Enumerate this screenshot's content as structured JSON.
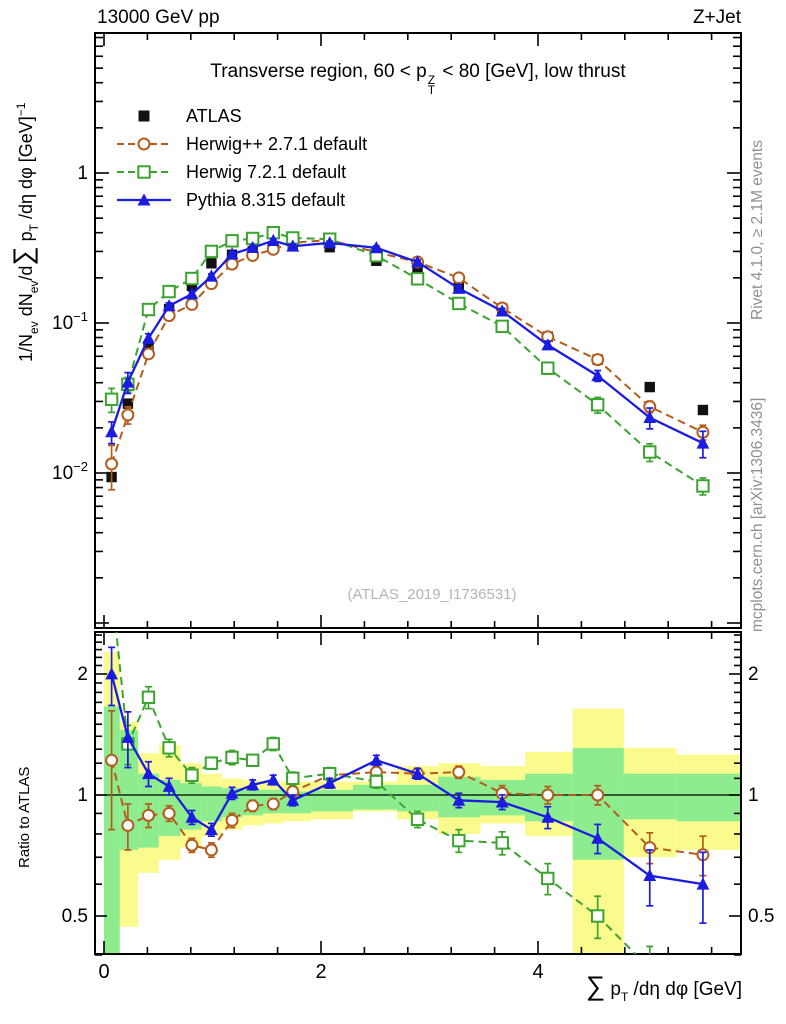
{
  "header": {
    "beam": "13000 GeV pp",
    "process": "Z+Jet"
  },
  "panel_title": {
    "prefix": "Transverse region, 60 < p",
    "sup": "Z",
    "sub": "T",
    "suffix": " < 80 [GeV], low thrust"
  },
  "watermark": "(ATLAS_2019_I1736531)",
  "side_notes": {
    "top": "Rivet 4.1.0, ≥ 2.1M events",
    "bottom": "mcplots.cern.ch [arXiv:1306.3436]"
  },
  "legend": [
    {
      "label": "ATLAS",
      "marker": "square",
      "color": "#111111",
      "line": "none"
    },
    {
      "label": "Herwig++ 2.7.1 default",
      "marker": "circle-open",
      "color": "#b45c1e",
      "line": "dashed"
    },
    {
      "label": "Herwig 7.2.1 default",
      "marker": "square-open",
      "color": "#3ba32f",
      "line": "dashed"
    },
    {
      "label": "Pythia 8.315 default",
      "marker": "triangle",
      "color": "#1c1ce0",
      "line": "solid"
    }
  ],
  "axes": {
    "x": {
      "ticks": [
        {
          "v": 0,
          "label": "0"
        },
        {
          "v": 2,
          "label": "2"
        },
        {
          "v": 4,
          "label": "4"
        }
      ],
      "minor_step": 0.4,
      "lim": [
        -0.085,
        5.87
      ],
      "label_parts": [
        {
          "t": "∑",
          "c": "big"
        },
        {
          "t": " p",
          "c": ""
        },
        {
          "t": "T",
          "c": "sub"
        },
        {
          "t": " /dη dφ [GeV]",
          "c": ""
        }
      ]
    },
    "main_y": {
      "scale": "log",
      "lim": [
        0.00092,
        8.6
      ],
      "ticks": [
        {
          "v": 1,
          "base": "1",
          "exp": ""
        },
        {
          "v": 0.1,
          "base": "10",
          "exp": "−1"
        },
        {
          "v": 0.01,
          "base": "10",
          "exp": "−2"
        }
      ],
      "label_parts": [
        {
          "t": "1/N",
          "c": ""
        },
        {
          "t": "ev",
          "c": "sub"
        },
        {
          "t": " dN",
          "c": ""
        },
        {
          "t": "ev",
          "c": "sub"
        },
        {
          "t": "/d",
          "c": ""
        },
        {
          "t": "∑",
          "c": "big"
        },
        {
          "t": " p",
          "c": ""
        },
        {
          "t": "T",
          "c": "sub"
        },
        {
          "t": " /dη dφ  [GeV]",
          "c": ""
        },
        {
          "t": "−1",
          "c": "sup"
        }
      ]
    },
    "ratio_y": {
      "scale": "log",
      "lim": [
        0.402,
        2.55
      ],
      "ticks": [
        {
          "v": 2,
          "label": "2"
        },
        {
          "v": 1,
          "label": "1"
        },
        {
          "v": 0.5,
          "label": "0.5"
        }
      ],
      "label": "Ratio to ATLAS"
    }
  },
  "chart_data": {
    "type": "line",
    "title": "Transverse region, 60 < p_T^Z < 80 [GeV], low thrust",
    "xlabel": "sum p_T /deta dphi [GeV]",
    "ylabel": "1/N_ev dN_ev/d sum p_T /deta dphi [GeV]^-1",
    "ratio_ylabel": "Ratio to ATLAS",
    "x": [
      0.07,
      0.22,
      0.41,
      0.6,
      0.81,
      0.99,
      1.18,
      1.37,
      1.56,
      1.74,
      2.08,
      2.51,
      2.89,
      3.27,
      3.67,
      4.09,
      4.55,
      5.03,
      5.52
    ],
    "bin_edges": [
      0,
      0.145,
      0.315,
      0.505,
      0.705,
      0.9,
      1.085,
      1.275,
      1.465,
      1.65,
      1.91,
      2.295,
      2.7,
      3.08,
      3.47,
      3.88,
      4.32,
      4.79,
      5.275,
      5.87
    ],
    "reference": {
      "name": "ATLAS",
      "color": "#111111",
      "marker": "square",
      "values": [
        0.0094,
        0.029,
        0.07,
        0.124,
        0.177,
        0.25,
        0.285,
        0.3,
        0.325,
        0.335,
        0.32,
        0.26,
        0.226,
        0.175,
        0.125,
        0.081,
        0.057,
        0.0374,
        0.0263
      ]
    },
    "series": [
      {
        "name": "Herwig++ 2.7.1 default",
        "color": "#b45c1e",
        "marker": "circle-open",
        "line": "dashed",
        "values": [
          0.0115,
          0.0244,
          0.0623,
          0.112,
          0.133,
          0.183,
          0.247,
          0.282,
          0.31,
          0.342,
          0.358,
          0.296,
          0.255,
          0.2,
          0.126,
          0.081,
          0.057,
          0.0277,
          0.0187
        ],
        "ratio": [
          1.22,
          0.84,
          0.89,
          0.9,
          0.75,
          0.73,
          0.865,
          0.94,
          0.95,
          1.02,
          1.12,
          1.14,
          1.13,
          1.14,
          1.01,
          1.0,
          1.0,
          0.74,
          0.71
        ],
        "ratio_err": [
          0.4,
          0.11,
          0.06,
          0.04,
          0.03,
          0.03,
          0.035,
          0.03,
          0.03,
          0.03,
          0.03,
          0.035,
          0.035,
          0.04,
          0.045,
          0.05,
          0.055,
          0.065,
          0.08
        ]
      },
      {
        "name": "Herwig 7.2.1 default",
        "color": "#3ba32f",
        "marker": "square-open",
        "line": "dashed",
        "values": [
          0.031,
          0.039,
          0.123,
          0.162,
          0.198,
          0.3,
          0.353,
          0.366,
          0.4,
          0.369,
          0.362,
          0.281,
          0.197,
          0.135,
          0.095,
          0.05,
          0.0285,
          0.0138,
          0.0082
        ],
        "ratio": [
          3.3,
          1.34,
          1.75,
          1.31,
          1.12,
          1.2,
          1.24,
          1.22,
          1.34,
          1.1,
          1.13,
          1.08,
          0.87,
          0.77,
          0.76,
          0.62,
          0.5,
          0.37,
          0.31
        ],
        "ratio_err": [
          0.6,
          0.15,
          0.11,
          0.065,
          0.05,
          0.04,
          0.05,
          0.04,
          0.05,
          0.04,
          0.04,
          0.04,
          0.04,
          0.05,
          0.05,
          0.055,
          0.06,
          0.05,
          0.04
        ]
      },
      {
        "name": "Pythia 8.315 default",
        "color": "#1c1ce0",
        "marker": "triangle",
        "line": "solid",
        "values": [
          0.0188,
          0.0403,
          0.0791,
          0.13,
          0.156,
          0.205,
          0.288,
          0.318,
          0.354,
          0.325,
          0.342,
          0.317,
          0.255,
          0.17,
          0.12,
          0.0713,
          0.0445,
          0.0234,
          0.0158
        ],
        "ratio": [
          2.0,
          1.39,
          1.13,
          1.05,
          0.88,
          0.82,
          1.01,
          1.06,
          1.09,
          0.97,
          1.07,
          1.22,
          1.13,
          0.97,
          0.96,
          0.88,
          0.78,
          0.63,
          0.6
        ],
        "ratio_err": [
          0.33,
          0.22,
          0.08,
          0.05,
          0.035,
          0.03,
          0.035,
          0.03,
          0.03,
          0.03,
          0.03,
          0.035,
          0.035,
          0.04,
          0.04,
          0.055,
          0.065,
          0.1,
          0.12
        ]
      }
    ],
    "bands": {
      "yellow_color": "#fbfb8d",
      "green_color": "#8dec8d",
      "yellow": [
        [
          0.48,
          2.27
        ],
        [
          0.47,
          1.52
        ],
        [
          0.64,
          1.27
        ],
        [
          0.69,
          1.33
        ],
        [
          0.74,
          1.2
        ],
        [
          0.79,
          1.13
        ],
        [
          0.82,
          1.1
        ],
        [
          0.84,
          1.09
        ],
        [
          0.85,
          1.08
        ],
        [
          0.86,
          1.08
        ],
        [
          0.87,
          1.08
        ],
        [
          0.91,
          1.08
        ],
        [
          0.87,
          1.18
        ],
        [
          0.8,
          1.2
        ],
        [
          0.85,
          1.18
        ],
        [
          0.79,
          1.28
        ],
        [
          0.4,
          1.64
        ],
        [
          0.7,
          1.31
        ],
        [
          0.73,
          1.26
        ]
      ],
      "green": [
        [
          0.39,
          1.66
        ],
        [
          0.73,
          1.45
        ],
        [
          0.74,
          1.13
        ],
        [
          0.79,
          1.09
        ],
        [
          0.82,
          1.07
        ],
        [
          0.86,
          1.05
        ],
        [
          0.88,
          1.04
        ],
        [
          0.89,
          1.03
        ],
        [
          0.9,
          1.03
        ],
        [
          0.9,
          1.02
        ],
        [
          0.91,
          1.03
        ],
        [
          0.92,
          1.06
        ],
        [
          0.91,
          1.06
        ],
        [
          0.88,
          1.11
        ],
        [
          0.89,
          1.09
        ],
        [
          0.86,
          1.13
        ],
        [
          0.69,
          1.31
        ],
        [
          0.87,
          1.13
        ],
        [
          0.86,
          1.13
        ]
      ],
      "ratio_line": 1
    }
  }
}
